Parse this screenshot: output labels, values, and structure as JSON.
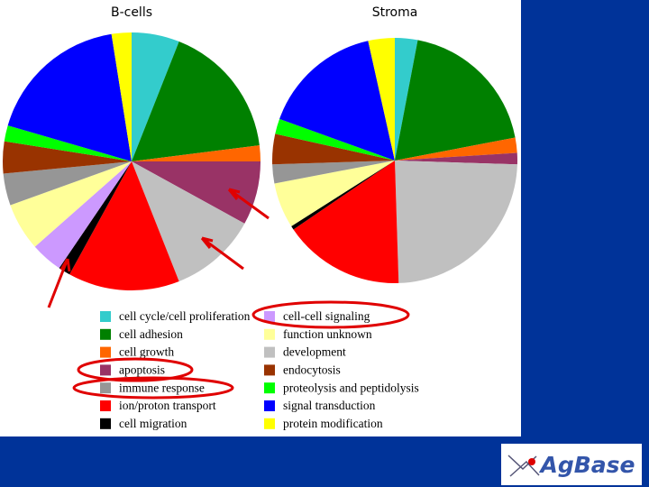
{
  "chart_data": {
    "type": "pie",
    "categories": [
      "cell cycle/cell proliferation",
      "cell adhesion",
      "cell growth",
      "apoptosis",
      "development",
      "ion/proton transport",
      "cell migration",
      "cell-cell signaling",
      "function unknown",
      "immune response",
      "endocytosis",
      "proteolysis and peptidolysis",
      "signal transduction",
      "protein modification"
    ],
    "colors": [
      "#33cccc",
      "#008000",
      "#ff6600",
      "#993366",
      "#c0c0c0",
      "#ff0000",
      "#000000",
      "#cc99ff",
      "#ffff99",
      "#969696",
      "#993300",
      "#00ff00",
      "#0000ff",
      "#ffff00"
    ],
    "series": [
      {
        "name": "B-cells",
        "values": [
          6,
          17,
          2,
          8,
          11,
          14,
          1.5,
          4,
          6,
          4,
          4,
          2,
          18,
          2.5
        ]
      },
      {
        "name": "Stroma",
        "values": [
          3,
          19,
          2,
          1.5,
          24,
          16,
          0.5,
          0,
          6,
          2.5,
          4,
          2,
          16,
          3.5
        ]
      }
    ]
  },
  "logo": "AgBase"
}
